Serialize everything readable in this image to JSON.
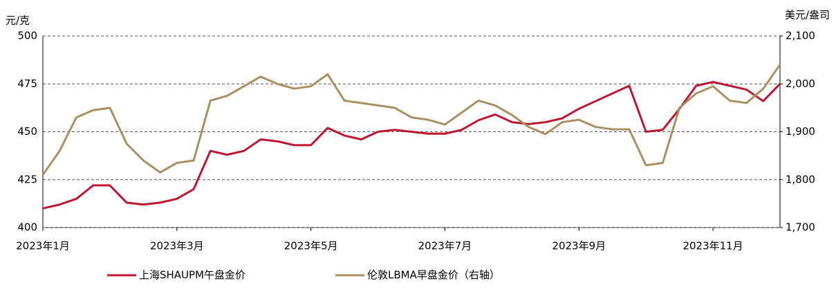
{
  "chart_data": {
    "type": "line",
    "y_label": "元/克",
    "y2_label": "美元/盎司",
    "categories": [
      "2023年1月",
      null,
      null,
      null,
      null,
      null,
      null,
      null,
      "2023年3月",
      null,
      null,
      null,
      null,
      null,
      null,
      null,
      "2023年5月",
      null,
      null,
      null,
      null,
      null,
      null,
      null,
      "2023年7月",
      null,
      null,
      null,
      null,
      null,
      null,
      null,
      "2023年9月",
      null,
      null,
      null,
      null,
      null,
      null,
      null,
      "2023年11月",
      null,
      null,
      null,
      null
    ],
    "series": [
      {
        "name": "上海SHAUPM午盘金价",
        "color": "#c0152f",
        "axis": "y",
        "values": [
          410,
          412,
          415,
          422,
          422,
          413,
          412,
          413,
          415,
          420,
          440,
          438,
          440,
          446,
          445,
          443,
          443,
          452,
          448,
          446,
          450,
          451,
          450,
          449,
          449,
          451,
          456,
          459,
          455,
          454,
          455,
          457,
          462,
          466,
          470,
          474,
          450,
          451,
          462,
          474,
          476,
          474,
          472,
          466,
          475
        ]
      },
      {
        "name": "伦敦LBMA早盘金价（右轴）",
        "color": "#a89060",
        "axis": "y2",
        "values": [
          1810,
          1860,
          1930,
          1945,
          1950,
          1875,
          1840,
          1815,
          1835,
          1840,
          1965,
          1975,
          1995,
          2015,
          2000,
          1990,
          1995,
          2020,
          1965,
          1960,
          1955,
          1950,
          1930,
          1925,
          1915,
          1940,
          1965,
          1955,
          1935,
          1910,
          1895,
          1920,
          1925,
          1910,
          1905,
          1905,
          1830,
          1835,
          1950,
          1980,
          1995,
          1965,
          1960,
          1990,
          2040
        ]
      }
    ],
    "ylim": [
      400,
      500
    ],
    "yticks": [
      400,
      425,
      450,
      475,
      500
    ],
    "y2lim": [
      1700,
      2100
    ],
    "y2ticks": [
      {
        "value": 1700,
        "label": "1,700"
      },
      {
        "value": 1800,
        "label": "1,800"
      },
      {
        "value": 1900,
        "label": "1,900"
      },
      {
        "value": 2000,
        "label": "2,000"
      },
      {
        "value": 2100,
        "label": "2,100"
      }
    ],
    "grid": true,
    "legend": "bottom"
  }
}
